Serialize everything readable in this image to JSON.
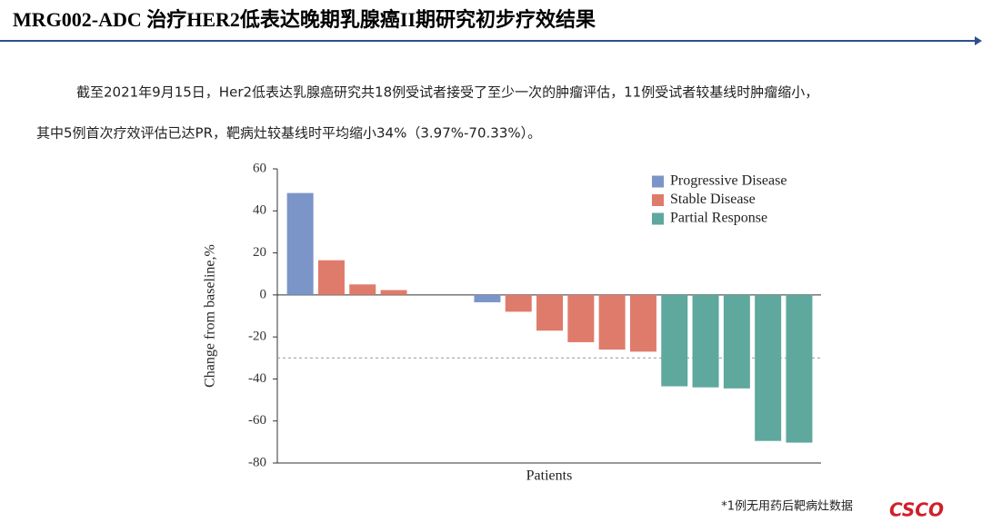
{
  "header": {
    "title": "MRG002-ADC 治疗HER2低表达晚期乳腺癌II期研究初步疗效结果"
  },
  "text": {
    "lines": [
      "截至2021年9月15日，Her2低表达乳腺癌研究共18例受试者接受了至少一次的肿瘤评估，11例受试者较基线时肿瘤缩小，",
      "其中5例首次疗效评估已达PR，靶病灶较基线时平均缩小34%（3.97%-70.33%）。"
    ]
  },
  "chart_data": {
    "type": "bar",
    "y_label": "Change from baseline,%",
    "x_label": "Patients",
    "categories": [
      null,
      null,
      null,
      null,
      null,
      null,
      null,
      null,
      null,
      null,
      null,
      null,
      null,
      null,
      null,
      null,
      null
    ],
    "series": [
      {
        "name": "Progressive Disease",
        "color": "#7b95c8",
        "values": [
          48.5,
          null,
          null,
          null,
          null,
          null,
          -3.5,
          null,
          null,
          null,
          null,
          null,
          null,
          null,
          null,
          null,
          null
        ]
      },
      {
        "name": "Stable Disease",
        "color": "#df7b6b",
        "values": [
          null,
          16.5,
          5,
          2.3,
          0,
          0,
          null,
          -8,
          -17,
          -22.5,
          -26,
          -27,
          null,
          null,
          null,
          null,
          null
        ]
      },
      {
        "name": "Partial Response",
        "color": "#5ea89e",
        "values": [
          null,
          null,
          null,
          null,
          null,
          null,
          null,
          null,
          null,
          null,
          null,
          null,
          -43.5,
          -44,
          -44.5,
          -69.5,
          -70.3
        ]
      }
    ],
    "ylim": [
      -80,
      60
    ],
    "yticks": [
      -80,
      -60,
      -40,
      -20,
      0,
      20,
      40,
      60
    ],
    "reference_line": -30,
    "legend": "upper right"
  },
  "footnote": "*1例无用药后靶病灶数据",
  "logo": "CSCO"
}
